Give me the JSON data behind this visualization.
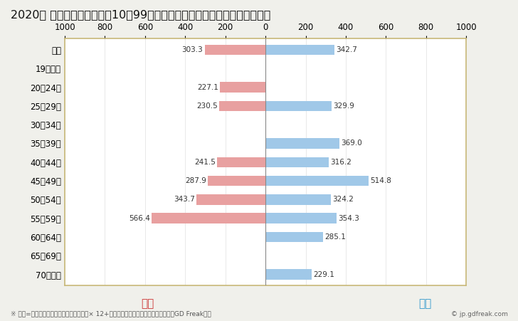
{
  "title": "2020年 民間企業（従業者数10〜99人）フルタイム労働者の男女別平均年収",
  "footnote": "※ 年収=「きまって支給する現金給与額」× 12+「年間賞与その他特別給与額」としてGD Freak推計",
  "copyright": "© jp.gdfreak.com",
  "female_label": "女性",
  "male_label": "男性",
  "categories": [
    "全体",
    "19歳以下",
    "20〜24歳",
    "25〜29歳",
    "30〜34歳",
    "35〜39歳",
    "40〜44歳",
    "45〜49歳",
    "50〜54歳",
    "55〜59歳",
    "60〜64歳",
    "65〜69歳",
    "70歳以上"
  ],
  "female_values": [
    303.3,
    0,
    227.1,
    230.5,
    0,
    0,
    241.5,
    287.9,
    343.7,
    566.4,
    0,
    0,
    0
  ],
  "male_values": [
    342.7,
    0,
    0,
    329.9,
    0,
    369.0,
    316.2,
    514.8,
    324.2,
    354.3,
    285.1,
    0,
    229.1
  ],
  "female_color": "#e8a0a0",
  "male_color": "#a0c8e8",
  "female_label_color": "#cc3333",
  "male_label_color": "#3399cc",
  "background_color": "#f0f0eb",
  "plot_background": "#ffffff",
  "border_color": "#c8b878",
  "xlim": [
    -1000,
    1000
  ],
  "xticks": [
    -1000,
    -800,
    -600,
    -400,
    -200,
    0,
    200,
    400,
    600,
    800,
    1000
  ],
  "xtick_labels": [
    "1000",
    "800",
    "600",
    "400",
    "200",
    "0",
    "200",
    "400",
    "600",
    "800",
    "1000"
  ],
  "title_fontsize": 11.5,
  "tick_fontsize": 8.5,
  "bar_height": 0.55,
  "value_fontsize": 7.5
}
